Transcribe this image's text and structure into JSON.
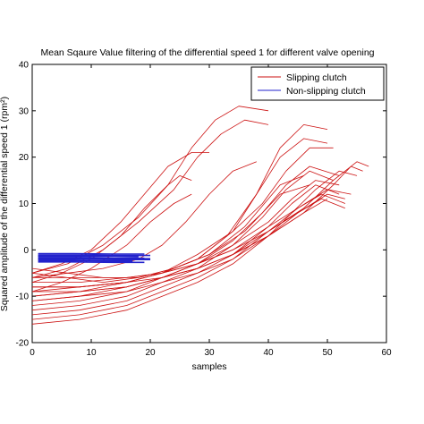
{
  "chart_data": {
    "type": "line",
    "title": "Mean Sqaure Value filtering of the differential speed 1 for different valve opening",
    "xlabel": "samples",
    "ylabel": "Squared amplitude of the differential speed 1 (rpm²)",
    "xlim": [
      0,
      60
    ],
    "ylim": [
      -20,
      40
    ],
    "xticks": [
      "0",
      "10",
      "20",
      "30",
      "40",
      "50",
      "60"
    ],
    "yticks": [
      "-20",
      "-10",
      "0",
      "10",
      "20",
      "30",
      "40"
    ],
    "grid": false,
    "legend_position": "top-right",
    "colors": {
      "slipping": "#cc1111",
      "nonslipping": "#2222cc"
    },
    "legend": [
      {
        "label": "Slipping clutch",
        "color": "#cc1111"
      },
      {
        "label": "Non-slipping clutch",
        "color": "#2222cc"
      }
    ],
    "slipping_series": [
      {
        "x": [
          0,
          6,
          12,
          18,
          23,
          27,
          31,
          35,
          40
        ],
        "y": [
          -5,
          -3,
          1,
          7,
          14,
          22,
          28,
          31,
          30
        ]
      },
      {
        "x": [
          0,
          6,
          12,
          18,
          24,
          28,
          32,
          36,
          40
        ],
        "y": [
          -6,
          -4,
          0,
          6,
          13,
          20,
          25,
          28,
          27
        ]
      },
      {
        "x": [
          0,
          5,
          10,
          15,
          19,
          23,
          27,
          30
        ],
        "y": [
          -5,
          -3,
          0,
          6,
          12,
          18,
          21,
          21
        ]
      },
      {
        "x": [
          0,
          5,
          10,
          15,
          19,
          23,
          25,
          27
        ],
        "y": [
          -7,
          -5,
          -2,
          3,
          9,
          14,
          16,
          15
        ]
      },
      {
        "x": [
          0,
          5,
          10,
          16,
          20,
          24,
          27
        ],
        "y": [
          -9,
          -7,
          -4,
          1,
          6,
          10,
          12
        ]
      },
      {
        "x": [
          0,
          6,
          12,
          18,
          22,
          26,
          30,
          34,
          38
        ],
        "y": [
          -6,
          -5,
          -4,
          -2,
          1,
          6,
          12,
          17,
          19
        ]
      },
      {
        "x": [
          0,
          8,
          16,
          22,
          28,
          33,
          38,
          42,
          46,
          50
        ],
        "y": [
          -10,
          -9,
          -7,
          -5,
          -2,
          3,
          12,
          22,
          27,
          26
        ]
      },
      {
        "x": [
          0,
          8,
          16,
          22,
          28,
          34,
          38,
          42,
          46,
          50
        ],
        "y": [
          -8,
          -8,
          -7,
          -5,
          -2,
          4,
          12,
          20,
          24,
          23
        ]
      },
      {
        "x": [
          0,
          8,
          16,
          22,
          28,
          34,
          39,
          43,
          47,
          51
        ],
        "y": [
          -9,
          -8,
          -7,
          -5,
          -1,
          4,
          10,
          17,
          22,
          22
        ]
      },
      {
        "x": [
          0,
          8,
          16,
          22,
          28,
          34,
          39,
          43,
          47,
          52
        ],
        "y": [
          -11,
          -10,
          -8,
          -6,
          -3,
          2,
          8,
          14,
          18,
          16
        ]
      },
      {
        "x": [
          0,
          8,
          16,
          22,
          28,
          34,
          39,
          43,
          47,
          51
        ],
        "y": [
          -12,
          -11,
          -9,
          -6,
          -3,
          1,
          7,
          13,
          17,
          15
        ]
      },
      {
        "x": [
          0,
          8,
          16,
          22,
          28,
          34,
          40,
          44,
          48,
          52
        ],
        "y": [
          -13,
          -12,
          -10,
          -7,
          -4,
          1,
          6,
          11,
          15,
          14
        ]
      },
      {
        "x": [
          0,
          8,
          16,
          22,
          28,
          34,
          40,
          44,
          48,
          52
        ],
        "y": [
          -14,
          -13,
          -11,
          -8,
          -5,
          -1,
          5,
          10,
          14,
          12
        ]
      },
      {
        "x": [
          0,
          8,
          16,
          22,
          28,
          34,
          40,
          45,
          49,
          53
        ],
        "y": [
          -15,
          -14,
          -12,
          -9,
          -6,
          -2,
          4,
          9,
          12,
          10
        ]
      },
      {
        "x": [
          0,
          8,
          16,
          22,
          28,
          34,
          40,
          45,
          49,
          53
        ],
        "y": [
          -16,
          -15,
          -13,
          -10,
          -7,
          -3,
          3,
          8,
          11,
          9
        ]
      },
      {
        "x": [
          0,
          8,
          16,
          22,
          28,
          34,
          40,
          45,
          50,
          54
        ],
        "y": [
          -7,
          -7,
          -6,
          -5,
          -3,
          0,
          5,
          9,
          13,
          12
        ]
      },
      {
        "x": [
          0,
          8,
          16,
          22,
          28,
          34,
          40,
          45,
          50,
          53
        ],
        "y": [
          -8,
          -8,
          -7,
          -6,
          -4,
          -1,
          4,
          8,
          12,
          11
        ]
      },
      {
        "x": [
          0,
          8,
          16,
          22,
          28,
          34,
          40,
          46,
          51,
          55,
          57
        ],
        "y": [
          -6,
          -6,
          -6,
          -5,
          -3,
          0,
          4,
          9,
          15,
          19,
          18
        ]
      },
      {
        "x": [
          0,
          8,
          16,
          22,
          28,
          34,
          40,
          46,
          51,
          54,
          56
        ],
        "y": [
          -9,
          -9,
          -8,
          -6,
          -4,
          -1,
          3,
          8,
          14,
          18,
          17
        ]
      },
      {
        "x": [
          0,
          8,
          16,
          22,
          28,
          34,
          40,
          46,
          50
        ],
        "y": [
          -10,
          -9,
          -8,
          -6,
          -4,
          -1,
          3,
          8,
          11
        ]
      },
      {
        "x": [
          0,
          8,
          16,
          22,
          28,
          34,
          40,
          44,
          48,
          52,
          55
        ],
        "y": [
          -11,
          -10,
          -9,
          -7,
          -5,
          -2,
          3,
          8,
          13,
          17,
          16
        ]
      },
      {
        "x": [
          0,
          6,
          12,
          18,
          24,
          30,
          36,
          42,
          46
        ],
        "y": [
          -4,
          -5,
          -6,
          -6,
          -4,
          -1,
          5,
          14,
          16
        ]
      },
      {
        "x": [
          0,
          6,
          12,
          18,
          24,
          30,
          36,
          42,
          47
        ],
        "y": [
          -5,
          -6,
          -7,
          -6,
          -4,
          -1,
          4,
          12,
          14
        ]
      }
    ],
    "nonslipping_series": [
      {
        "x": [
          1,
          7,
          14,
          19
        ],
        "y": [
          -0.8,
          -0.8,
          -0.9,
          -0.9
        ]
      },
      {
        "x": [
          1,
          7,
          14,
          20
        ],
        "y": [
          -1.1,
          -1.1,
          -1.2,
          -1.2
        ]
      },
      {
        "x": [
          1,
          7,
          14,
          18
        ],
        "y": [
          -1.4,
          -1.4,
          -1.4,
          -1.5
        ]
      },
      {
        "x": [
          1,
          7,
          14,
          19
        ],
        "y": [
          -1.7,
          -1.7,
          -1.8,
          -1.8
        ]
      },
      {
        "x": [
          1,
          7,
          14,
          20
        ],
        "y": [
          -2.0,
          -2.0,
          -2.1,
          -2.1
        ]
      },
      {
        "x": [
          1,
          7,
          14,
          17
        ],
        "y": [
          -2.3,
          -2.3,
          -2.4,
          -2.4
        ]
      },
      {
        "x": [
          1,
          7,
          14,
          19
        ],
        "y": [
          -2.6,
          -2.6,
          -2.7,
          -2.7
        ]
      },
      {
        "x": [
          1,
          7,
          14,
          18
        ],
        "y": [
          -1.3,
          -1.3,
          -1.3,
          -1.3
        ]
      },
      {
        "x": [
          1,
          7,
          14,
          20
        ],
        "y": [
          -1.9,
          -1.9,
          -1.9,
          -1.9
        ]
      }
    ]
  }
}
